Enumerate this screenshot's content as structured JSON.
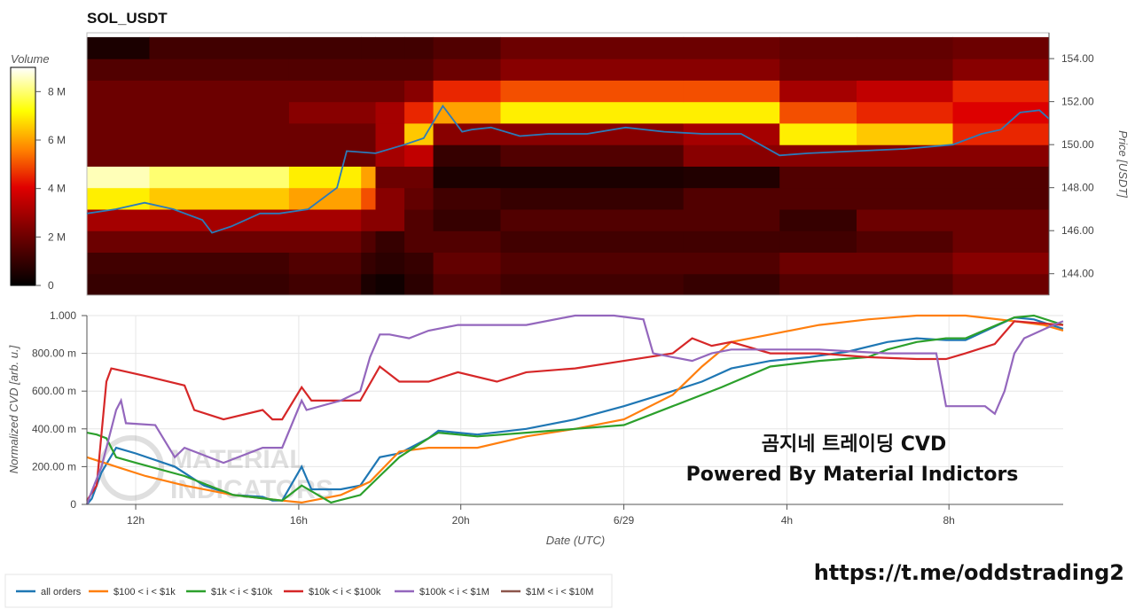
{
  "chart_data": [
    {
      "type": "heatmap",
      "title": "SOL_USDT",
      "ylabel": "Price [USDT]",
      "colorbar_label": "Volume",
      "colorbar_ticks": [
        "0",
        "2 M",
        "4 M",
        "6 M",
        "8 M"
      ],
      "colorbar_range": [
        0,
        9000000
      ],
      "y_ticks": [
        "144.00",
        "146.00",
        "148.00",
        "150.00",
        "152.00",
        "154.00"
      ],
      "ylim": [
        143,
        155.2
      ],
      "price_levels": [
        143.5,
        144.5,
        145.5,
        146.5,
        147.5,
        148.5,
        149.5,
        150.5,
        151.5,
        152.5,
        153.5,
        154.5
      ],
      "time_segments": [
        0,
        0.065,
        0.21,
        0.285,
        0.3,
        0.33,
        0.36,
        0.43,
        0.62,
        0.72,
        0.8,
        0.9,
        1.0
      ],
      "volume_grid_millions": [
        [
          1.0,
          1.0,
          1.2,
          0.5,
          0.3,
          0.8,
          1.5,
          1.2,
          1.0,
          1.5,
          1.5,
          2.0
        ],
        [
          1.2,
          1.2,
          1.5,
          1.0,
          0.8,
          1.0,
          1.8,
          1.5,
          1.5,
          2.0,
          2.0,
          2.5
        ],
        [
          2.0,
          2.0,
          2.0,
          1.5,
          1.0,
          1.5,
          1.5,
          1.2,
          1.2,
          1.2,
          1.5,
          2.0
        ],
        [
          3.0,
          3.0,
          3.0,
          2.5,
          2.5,
          1.5,
          1.0,
          1.5,
          1.5,
          1.0,
          2.0,
          2.0
        ],
        [
          7.0,
          6.5,
          6.0,
          5.0,
          2.5,
          1.8,
          1.2,
          1.0,
          1.5,
          1.5,
          1.5,
          1.5
        ],
        [
          8.5,
          8.0,
          7.0,
          6.0,
          2.0,
          2.0,
          0.5,
          0.5,
          0.6,
          1.5,
          1.5,
          1.5
        ],
        [
          2.0,
          2.0,
          2.0,
          2.0,
          3.0,
          3.5,
          1.0,
          1.5,
          2.5,
          2.5,
          2.5,
          2.5
        ],
        [
          2.0,
          2.0,
          2.0,
          2.0,
          3.0,
          6.5,
          2.5,
          2.5,
          3.0,
          7.0,
          6.5,
          4.5
        ],
        [
          2.0,
          2.0,
          2.5,
          2.5,
          3.0,
          4.5,
          6.0,
          7.0,
          7.0,
          5.0,
          4.5,
          4.0
        ],
        [
          2.0,
          2.0,
          2.0,
          2.0,
          2.0,
          2.5,
          4.5,
          5.0,
          5.0,
          3.0,
          3.5,
          4.5
        ],
        [
          1.5,
          1.5,
          1.5,
          1.5,
          1.5,
          1.5,
          2.0,
          2.5,
          2.5,
          2.0,
          2.0,
          2.5
        ],
        [
          0.5,
          1.2,
          1.2,
          1.2,
          1.2,
          1.2,
          1.5,
          2.0,
          2.0,
          1.8,
          1.8,
          2.0
        ]
      ],
      "price_line": {
        "x": [
          0.0,
          0.03,
          0.06,
          0.09,
          0.12,
          0.13,
          0.15,
          0.18,
          0.2,
          0.23,
          0.26,
          0.27,
          0.3,
          0.33,
          0.35,
          0.37,
          0.39,
          0.4,
          0.42,
          0.45,
          0.48,
          0.52,
          0.56,
          0.6,
          0.64,
          0.68,
          0.72,
          0.75,
          0.8,
          0.85,
          0.9,
          0.93,
          0.95,
          0.97,
          0.99,
          1.0
        ],
        "y": [
          146.8,
          147.0,
          147.3,
          147.0,
          146.5,
          145.9,
          146.2,
          146.8,
          146.8,
          147.0,
          148.0,
          149.7,
          149.6,
          150.0,
          150.3,
          151.8,
          150.6,
          150.7,
          150.8,
          150.4,
          150.5,
          150.5,
          150.8,
          150.6,
          150.5,
          150.5,
          149.5,
          149.6,
          149.7,
          149.8,
          150.0,
          150.5,
          150.7,
          151.5,
          151.6,
          151.2
        ]
      }
    },
    {
      "type": "line",
      "xlabel": "Date (UTC)",
      "ylabel": "Normalized CVD [arb. u.]",
      "ylim": [
        0,
        1
      ],
      "y_ticks": [
        "0",
        "200.00 m",
        "400.00 m",
        "600.00 m",
        "800.00 m",
        "1.000"
      ],
      "x_ticks": [
        {
          "label": "12h",
          "pos": 0.05
        },
        {
          "label": "16h",
          "pos": 0.217
        },
        {
          "label": "20h",
          "pos": 0.383
        },
        {
          "label": "6/29",
          "pos": 0.55
        },
        {
          "label": "4h",
          "pos": 0.717
        },
        {
          "label": "8h",
          "pos": 0.883
        }
      ],
      "series": [
        {
          "name": "all orders",
          "color": "#1f77b4",
          "x": [
            0,
            0.005,
            0.015,
            0.03,
            0.05,
            0.09,
            0.12,
            0.15,
            0.18,
            0.19,
            0.2,
            0.22,
            0.23,
            0.26,
            0.28,
            0.3,
            0.32,
            0.35,
            0.36,
            0.4,
            0.45,
            0.5,
            0.55,
            0.6,
            0.63,
            0.66,
            0.7,
            0.74,
            0.78,
            0.82,
            0.85,
            0.88,
            0.9,
            0.95,
            0.97,
            1.0
          ],
          "y": [
            0.0,
            0.03,
            0.17,
            0.3,
            0.27,
            0.2,
            0.1,
            0.05,
            0.04,
            0.02,
            0.02,
            0.2,
            0.08,
            0.08,
            0.1,
            0.25,
            0.27,
            0.35,
            0.39,
            0.37,
            0.4,
            0.45,
            0.52,
            0.6,
            0.65,
            0.72,
            0.76,
            0.78,
            0.81,
            0.86,
            0.88,
            0.87,
            0.87,
            0.99,
            0.98,
            0.93
          ]
        },
        {
          "name": "$100 < i < $1k",
          "color": "#ff7f0e",
          "x": [
            0,
            0.03,
            0.06,
            0.1,
            0.15,
            0.2,
            0.22,
            0.26,
            0.29,
            0.32,
            0.35,
            0.4,
            0.45,
            0.5,
            0.55,
            0.6,
            0.63,
            0.66,
            0.7,
            0.75,
            0.8,
            0.85,
            0.9,
            0.95,
            0.98,
            1.0
          ],
          "y": [
            0.25,
            0.2,
            0.15,
            0.1,
            0.05,
            0.02,
            0.01,
            0.05,
            0.12,
            0.28,
            0.3,
            0.3,
            0.36,
            0.4,
            0.45,
            0.58,
            0.73,
            0.86,
            0.9,
            0.95,
            0.98,
            1.0,
            1.0,
            0.97,
            0.95,
            0.92
          ]
        },
        {
          "name": "$1k < i < $10k",
          "color": "#2ca02c",
          "x": [
            0,
            0.01,
            0.02,
            0.03,
            0.05,
            0.1,
            0.15,
            0.2,
            0.22,
            0.25,
            0.28,
            0.3,
            0.32,
            0.35,
            0.36,
            0.4,
            0.45,
            0.5,
            0.55,
            0.6,
            0.65,
            0.7,
            0.75,
            0.8,
            0.82,
            0.85,
            0.88,
            0.9,
            0.95,
            0.97,
            1.0
          ],
          "y": [
            0.38,
            0.37,
            0.35,
            0.25,
            0.22,
            0.15,
            0.05,
            0.02,
            0.1,
            0.01,
            0.05,
            0.15,
            0.25,
            0.35,
            0.38,
            0.36,
            0.38,
            0.4,
            0.42,
            0.52,
            0.62,
            0.73,
            0.76,
            0.78,
            0.82,
            0.86,
            0.88,
            0.88,
            0.99,
            1.0,
            0.95
          ]
        },
        {
          "name": "$10k < i < $100k",
          "color": "#d62728",
          "x": [
            0,
            0.01,
            0.02,
            0.025,
            0.06,
            0.1,
            0.11,
            0.14,
            0.18,
            0.19,
            0.2,
            0.22,
            0.23,
            0.28,
            0.3,
            0.32,
            0.35,
            0.38,
            0.42,
            0.45,
            0.5,
            0.55,
            0.6,
            0.62,
            0.64,
            0.66,
            0.7,
            0.75,
            0.8,
            0.85,
            0.88,
            0.9,
            0.93,
            0.95,
            1.0
          ],
          "y": [
            0.02,
            0.1,
            0.65,
            0.72,
            0.68,
            0.63,
            0.5,
            0.45,
            0.5,
            0.45,
            0.45,
            0.62,
            0.55,
            0.55,
            0.73,
            0.65,
            0.65,
            0.7,
            0.65,
            0.7,
            0.72,
            0.76,
            0.8,
            0.88,
            0.84,
            0.86,
            0.8,
            0.8,
            0.78,
            0.77,
            0.77,
            0.8,
            0.85,
            0.97,
            0.95
          ]
        },
        {
          "name": "$100k < i < $1M",
          "color": "#9467bd",
          "x": [
            0,
            0.005,
            0.015,
            0.03,
            0.035,
            0.04,
            0.07,
            0.09,
            0.1,
            0.14,
            0.18,
            0.2,
            0.22,
            0.225,
            0.26,
            0.28,
            0.29,
            0.3,
            0.31,
            0.33,
            0.35,
            0.38,
            0.45,
            0.5,
            0.54,
            0.57,
            0.58,
            0.6,
            0.62,
            0.64,
            0.66,
            0.7,
            0.75,
            0.82,
            0.87,
            0.88,
            0.92,
            0.93,
            0.94,
            0.95,
            0.96,
            0.99,
            1.0
          ],
          "y": [
            0.0,
            0.07,
            0.2,
            0.5,
            0.55,
            0.43,
            0.42,
            0.25,
            0.3,
            0.22,
            0.3,
            0.3,
            0.55,
            0.5,
            0.55,
            0.6,
            0.78,
            0.9,
            0.9,
            0.88,
            0.92,
            0.95,
            0.95,
            1.0,
            1.0,
            0.98,
            0.8,
            0.78,
            0.76,
            0.8,
            0.82,
            0.82,
            0.82,
            0.8,
            0.8,
            0.52,
            0.52,
            0.48,
            0.6,
            0.8,
            0.88,
            0.95,
            0.97
          ]
        },
        {
          "name": "$1M < i < $10M",
          "color": "#8c564b",
          "x": [],
          "y": []
        }
      ]
    }
  ],
  "overlay": {
    "line1": "곰지네 트레이딩 CVD",
    "line2": "Powered By Material Indictors"
  },
  "watermark": {
    "line1": "MATERIAL",
    "line2": "INDICATORS"
  },
  "footer_url": "https://t.me/oddstrading2"
}
